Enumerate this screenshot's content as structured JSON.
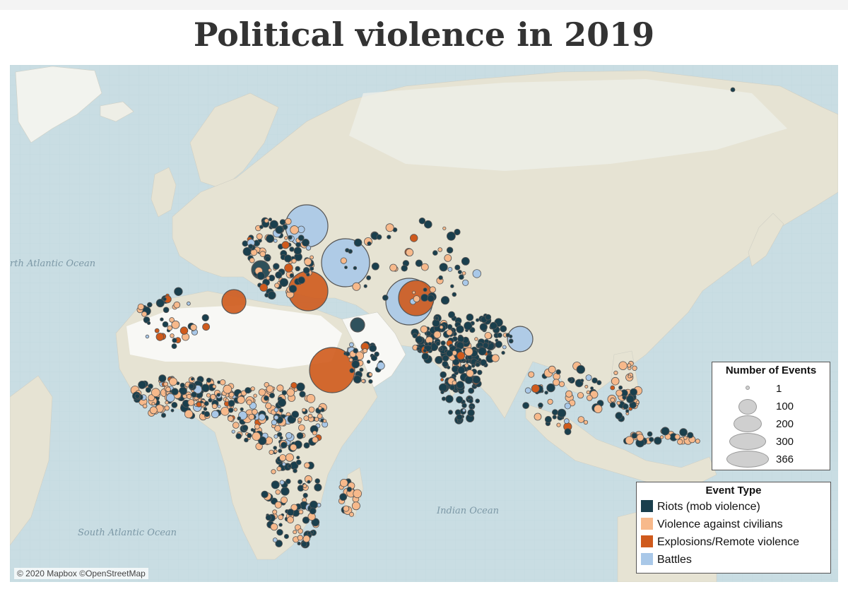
{
  "title": "Political violence in 2019",
  "map": {
    "attribution": "© 2020 Mapbox ©OpenStreetMap",
    "ocean_labels": [
      "rth Atlantic Ocean",
      "South Atlantic Ocean",
      "Indian Ocean"
    ]
  },
  "legend_size": {
    "title": "Number of Events",
    "items": [
      {
        "label": "1",
        "value": 1
      },
      {
        "label": "100",
        "value": 100
      },
      {
        "label": "200",
        "value": 200
      },
      {
        "label": "300",
        "value": 300
      },
      {
        "label": "366",
        "value": 366
      }
    ]
  },
  "legend_type": {
    "title": "Event Type",
    "items": [
      {
        "label": "Riots (mob violence)",
        "color": "#1a3f4d"
      },
      {
        "label": "Violence against civilians",
        "color": "#f7b98b"
      },
      {
        "label": "Explosions/Remote violence",
        "color": "#cf5a1c"
      },
      {
        "label": "Battles",
        "color": "#a9c8e8"
      }
    ]
  },
  "colors": {
    "ocean": "#c9dde3",
    "land": "#e6e3d3",
    "desert": "#f8f8f5",
    "snow": "#f4f6f2"
  }
}
